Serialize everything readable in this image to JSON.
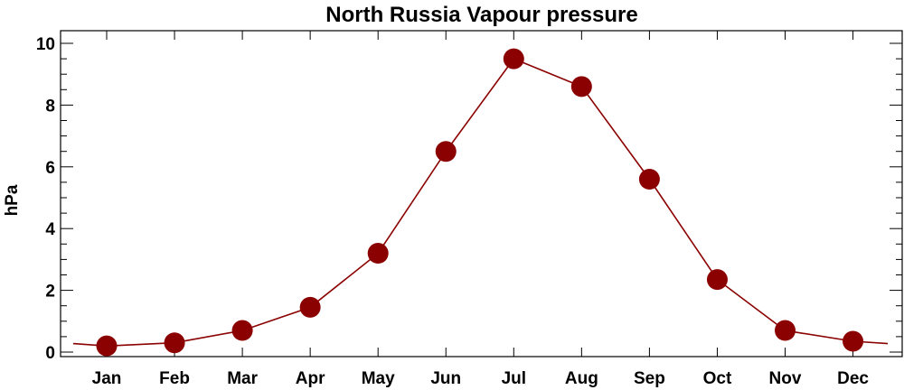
{
  "chart_data": {
    "type": "line",
    "title": "North Russia Vapour pressure",
    "xlabel": "",
    "ylabel": "hPa",
    "categories": [
      "Jan",
      "Feb",
      "Mar",
      "Apr",
      "May",
      "Jun",
      "Jul",
      "Aug",
      "Sep",
      "Oct",
      "Nov",
      "Dec"
    ],
    "series": [
      {
        "values": [
          0.2,
          0.3,
          0.7,
          1.45,
          3.2,
          6.5,
          9.5,
          8.6,
          5.6,
          2.35,
          0.7,
          0.35
        ],
        "color": "#8b0000"
      }
    ],
    "ylim": [
      0,
      10
    ],
    "yticks": [
      0,
      2,
      4,
      6,
      8,
      10
    ],
    "ytick_labels": [
      "0",
      "2",
      "4",
      "6",
      "8",
      "10"
    ],
    "marker": "circle",
    "grid": false,
    "legend": "none"
  }
}
